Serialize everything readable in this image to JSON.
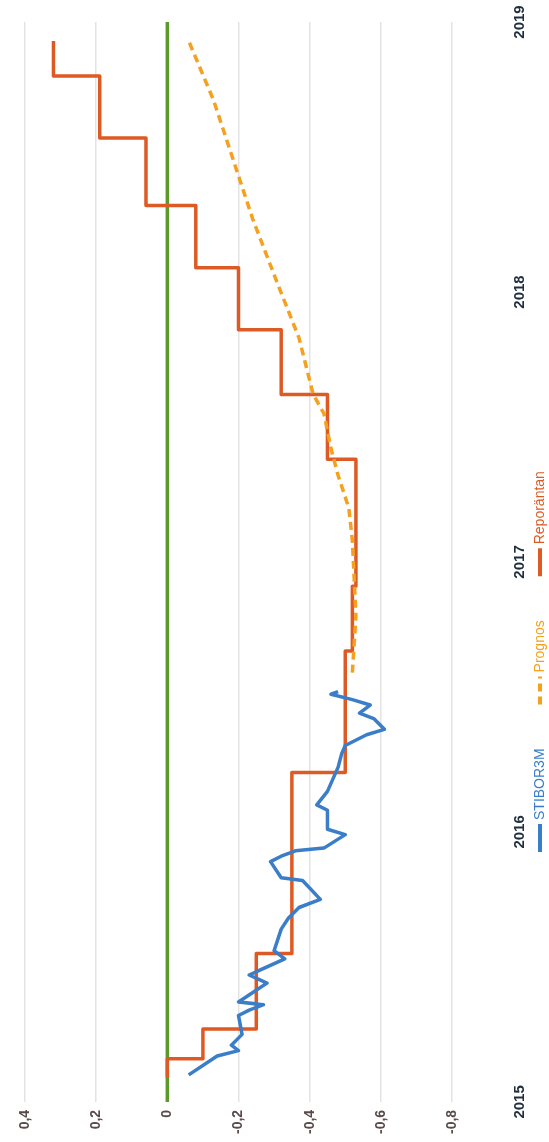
{
  "chart_data": {
    "type": "line",
    "orientation": "horizontal",
    "xlim": [
      0.4,
      -0.8
    ],
    "xticks": [
      {
        "value": 0.4,
        "label": "0,4"
      },
      {
        "value": 0.2,
        "label": "0,2"
      },
      {
        "value": 0,
        "label": "0"
      },
      {
        "value": -0.2,
        "label": "-0,2"
      },
      {
        "value": -0.4,
        "label": "-0,4"
      },
      {
        "value": -0.6,
        "label": "-0,6"
      },
      {
        "value": -0.8,
        "label": "-0,8"
      }
    ],
    "ylim": [
      2015,
      2019
    ],
    "yticks": [
      2015,
      2016,
      2017,
      2018,
      2019
    ],
    "grid": "x",
    "legend": "right",
    "marker": "none",
    "ref_lines": [
      {
        "axis": "x",
        "value": 0,
        "color": "#5b9a2a"
      }
    ],
    "series": [
      {
        "name": "STIBOR3M",
        "color": "#3a7dc9",
        "line_style": "solid",
        "x": [
          2015.1,
          2015.17,
          2015.19,
          2015.21,
          2015.25,
          2015.32,
          2015.34,
          2015.36,
          2015.37,
          2015.44,
          2015.47,
          2015.53,
          2015.56,
          2015.64,
          2015.68,
          2015.72,
          2015.75,
          2015.82,
          2015.83,
          2015.89,
          2015.91,
          2015.93,
          2015.94,
          2015.99,
          2016.01,
          2016.08,
          2016.1,
          2016.15,
          2016.24,
          2016.29,
          2016.32,
          2016.36,
          2016.38,
          2016.42,
          2016.44,
          2016.47,
          2016.49,
          2016.51,
          2016.52
        ],
        "values": [
          -0.06,
          -0.14,
          -0.2,
          -0.18,
          -0.21,
          -0.2,
          -0.23,
          -0.27,
          -0.2,
          -0.28,
          -0.23,
          -0.33,
          -0.3,
          -0.32,
          -0.34,
          -0.37,
          -0.43,
          -0.38,
          -0.32,
          -0.29,
          -0.32,
          -0.36,
          -0.44,
          -0.5,
          -0.45,
          -0.45,
          -0.42,
          -0.45,
          -0.48,
          -0.49,
          -0.5,
          -0.56,
          -0.61,
          -0.58,
          -0.54,
          -0.57,
          -0.52,
          -0.46,
          -0.48
        ]
      },
      {
        "name": "Prognos",
        "color": "#f5a01e",
        "line_style": "dashed",
        "x": [
          2016.59,
          2016.8,
          2017.08,
          2017.2,
          2017.32,
          2017.42,
          2017.55,
          2017.62,
          2017.83,
          2018.03,
          2018.27,
          2018.51,
          2018.71,
          2018.93
        ],
        "values": [
          -0.52,
          -0.53,
          -0.52,
          -0.51,
          -0.48,
          -0.46,
          -0.44,
          -0.41,
          -0.37,
          -0.31,
          -0.24,
          -0.18,
          -0.13,
          -0.06
        ]
      },
      {
        "name": "Reporäntan",
        "type": "step",
        "color": "#de5a24",
        "line_style": "solid",
        "x": [
          2015.09,
          2015.16,
          2015.27,
          2015.55,
          2016.22,
          2016.67,
          2016.91,
          2017.38,
          2017.62,
          2017.86,
          2018.09,
          2018.32,
          2018.57,
          2018.8,
          2018.93
        ],
        "values": [
          0,
          -0.1,
          -0.25,
          -0.35,
          -0.5,
          -0.52,
          -0.53,
          -0.45,
          -0.32,
          -0.2,
          -0.08,
          0.06,
          0.19,
          0.32,
          0.32
        ]
      }
    ]
  }
}
